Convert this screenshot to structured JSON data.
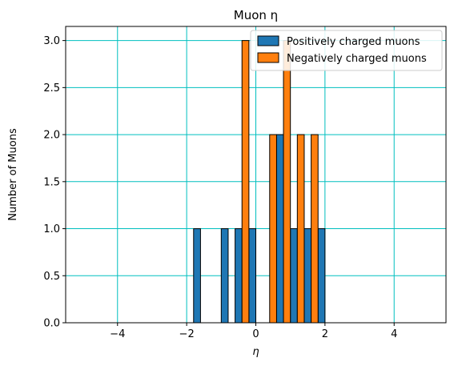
{
  "chart_data": {
    "type": "bar",
    "title": "Muon η",
    "xlabel": "η",
    "ylabel": "Number of Muons",
    "xlim": [
      -5.5,
      5.5
    ],
    "ylim": [
      0,
      3.15
    ],
    "xticks": [
      -4,
      -2,
      0,
      2,
      4
    ],
    "xtick_labels": [
      "−4",
      "−2",
      "0",
      "2",
      "4"
    ],
    "yticks": [
      0.0,
      0.5,
      1.0,
      1.5,
      2.0,
      2.5,
      3.0
    ],
    "ytick_labels": [
      "0.0",
      "0.5",
      "1.0",
      "1.5",
      "2.0",
      "2.5",
      "3.0"
    ],
    "grid": true,
    "grid_color": "#00bfbf",
    "legend_position": "top-right",
    "bin_edges": [
      -5.0,
      -4.6,
      -4.2,
      -3.8,
      -3.4,
      -3.0,
      -2.6,
      -2.2,
      -1.8,
      -1.4,
      -1.0,
      -0.6,
      -0.2,
      0.2,
      0.6,
      1.0,
      1.4,
      1.8,
      2.2,
      2.6,
      3.0,
      3.4,
      3.8,
      4.2,
      4.6,
      5.0
    ],
    "series": [
      {
        "name": "Positively charged muons",
        "color": "#1f77b4",
        "values": [
          0,
          0,
          0,
          0,
          0,
          0,
          0,
          0,
          1,
          0,
          1,
          1,
          1,
          0,
          2,
          1,
          1,
          1,
          0,
          0,
          0,
          0,
          0,
          0,
          0
        ]
      },
      {
        "name": "Negatively charged muons",
        "color": "#ff7f0e",
        "values": [
          0,
          0,
          0,
          0,
          0,
          0,
          0,
          0,
          0,
          0,
          0,
          3,
          0,
          2,
          3,
          2,
          2,
          0,
          0,
          0,
          0,
          0,
          0,
          0,
          0
        ]
      }
    ]
  }
}
